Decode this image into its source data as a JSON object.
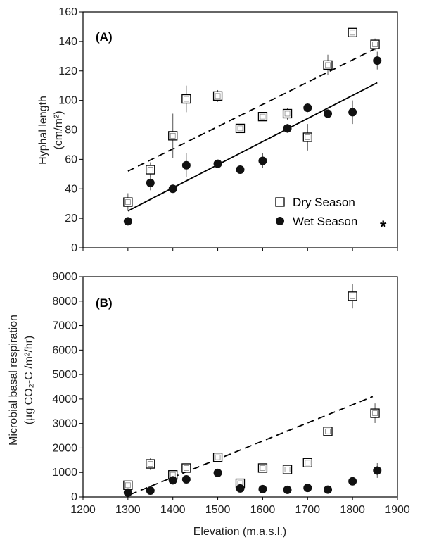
{
  "chart_data": [
    {
      "type": "scatter",
      "panel_label": "(A)",
      "ylabel_line1": "Hyphal length",
      "ylabel_line2": "(cm/m²)",
      "xlim": [
        1200,
        1900
      ],
      "ylim": [
        0,
        160
      ],
      "yticks": [
        0,
        20,
        40,
        60,
        80,
        100,
        120,
        140,
        160
      ],
      "series": [
        {
          "name": "Dry Season",
          "marker": "open-square",
          "trend": "dashed",
          "trend_endpoints": [
            [
              1300,
              52
            ],
            [
              1850,
              135
            ]
          ],
          "points": [
            {
              "x": 1300,
              "y": 31,
              "err": 6
            },
            {
              "x": 1350,
              "y": 53,
              "err": 5
            },
            {
              "x": 1400,
              "y": 76,
              "err": 15
            },
            {
              "x": 1430,
              "y": 101,
              "err": 9
            },
            {
              "x": 1500,
              "y": 103,
              "err": 4
            },
            {
              "x": 1550,
              "y": 81,
              "err": 3
            },
            {
              "x": 1600,
              "y": 89,
              "err": 3
            },
            {
              "x": 1655,
              "y": 91,
              "err": 4
            },
            {
              "x": 1700,
              "y": 75,
              "err": 9
            },
            {
              "x": 1745,
              "y": 124,
              "err": 7
            },
            {
              "x": 1800,
              "y": 146,
              "err": 3
            },
            {
              "x": 1850,
              "y": 138,
              "err": 4
            }
          ]
        },
        {
          "name": "Wet Season",
          "marker": "filled-circle",
          "trend": "solid",
          "trend_endpoints": [
            [
              1300,
              25
            ],
            [
              1855,
              112
            ]
          ],
          "points": [
            {
              "x": 1300,
              "y": 18,
              "err": 0
            },
            {
              "x": 1350,
              "y": 44,
              "err": 5
            },
            {
              "x": 1400,
              "y": 40,
              "err": 2
            },
            {
              "x": 1430,
              "y": 56,
              "err": 8
            },
            {
              "x": 1500,
              "y": 57,
              "err": 2
            },
            {
              "x": 1550,
              "y": 53,
              "err": 2
            },
            {
              "x": 1600,
              "y": 59,
              "err": 5
            },
            {
              "x": 1655,
              "y": 81,
              "err": 3
            },
            {
              "x": 1700,
              "y": 95,
              "err": 3
            },
            {
              "x": 1745,
              "y": 91,
              "err": 3
            },
            {
              "x": 1800,
              "y": 92,
              "err": 8
            },
            {
              "x": 1855,
              "y": 127,
              "err": 6
            }
          ]
        }
      ],
      "legend": [
        {
          "label": "Dry Season",
          "marker": "open-square"
        },
        {
          "label": "Wet Season",
          "marker": "filled-circle"
        }
      ],
      "significance_mark": "*"
    },
    {
      "type": "scatter",
      "panel_label": "(B)",
      "ylabel_line1": "Microbial basal respiration",
      "ylabel_line2": "(µg CO₂-C /m²/hr)",
      "xlabel": "Elevation (m.a.s.l.)",
      "xlim": [
        1200,
        1900
      ],
      "ylim": [
        0,
        9000
      ],
      "xticks": [
        1200,
        1300,
        1400,
        1500,
        1600,
        1700,
        1800,
        1900
      ],
      "yticks": [
        0,
        1000,
        2000,
        3000,
        4000,
        5000,
        6000,
        7000,
        8000,
        9000
      ],
      "series": [
        {
          "name": "Dry Season",
          "marker": "open-square",
          "trend": "dashed",
          "trend_endpoints": [
            [
              1305,
              100
            ],
            [
              1845,
              4100
            ]
          ],
          "points": [
            {
              "x": 1300,
              "y": 480,
              "err": 150
            },
            {
              "x": 1350,
              "y": 1350,
              "err": 250
            },
            {
              "x": 1400,
              "y": 900,
              "err": 150
            },
            {
              "x": 1430,
              "y": 1180,
              "err": 150
            },
            {
              "x": 1500,
              "y": 1620,
              "err": 150
            },
            {
              "x": 1550,
              "y": 560,
              "err": 120
            },
            {
              "x": 1600,
              "y": 1180,
              "err": 120
            },
            {
              "x": 1655,
              "y": 1120,
              "err": 120
            },
            {
              "x": 1700,
              "y": 1400,
              "err": 120
            },
            {
              "x": 1745,
              "y": 2680,
              "err": 150
            },
            {
              "x": 1800,
              "y": 8200,
              "err": 500
            },
            {
              "x": 1850,
              "y": 3420,
              "err": 400
            }
          ]
        },
        {
          "name": "Wet Season",
          "marker": "filled-circle",
          "trend": "none",
          "points": [
            {
              "x": 1300,
              "y": 180,
              "err": 0
            },
            {
              "x": 1350,
              "y": 260,
              "err": 0
            },
            {
              "x": 1400,
              "y": 680,
              "err": 0
            },
            {
              "x": 1430,
              "y": 720,
              "err": 0
            },
            {
              "x": 1500,
              "y": 980,
              "err": 0
            },
            {
              "x": 1550,
              "y": 350,
              "err": 0
            },
            {
              "x": 1600,
              "y": 320,
              "err": 0
            },
            {
              "x": 1655,
              "y": 290,
              "err": 0
            },
            {
              "x": 1700,
              "y": 370,
              "err": 0
            },
            {
              "x": 1745,
              "y": 300,
              "err": 0
            },
            {
              "x": 1800,
              "y": 640,
              "err": 0
            },
            {
              "x": 1855,
              "y": 1080,
              "err": 300
            }
          ]
        }
      ]
    }
  ]
}
